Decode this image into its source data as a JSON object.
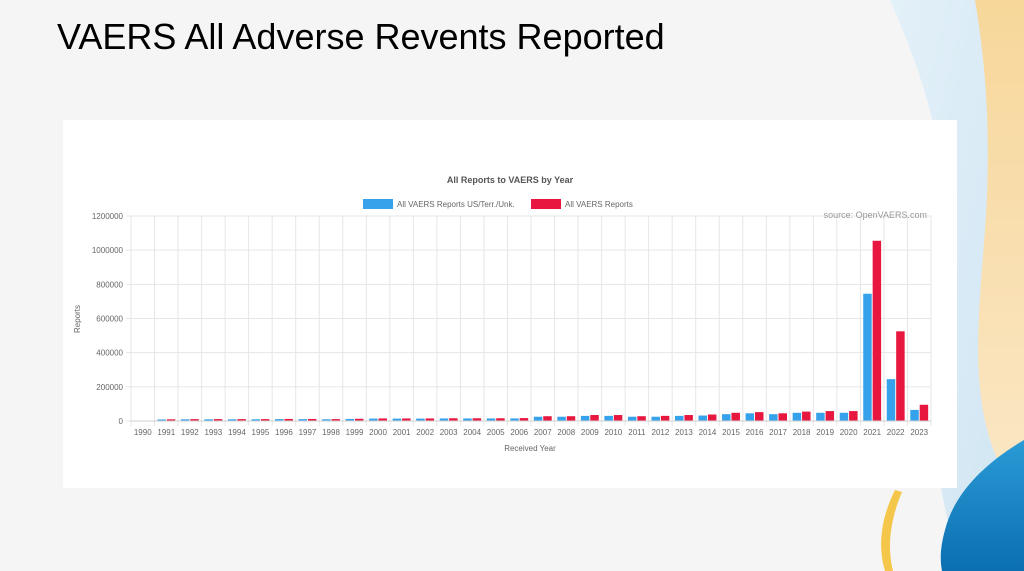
{
  "slide": {
    "title": "VAERS All Adverse Revents Reported"
  },
  "colors": {
    "us": "#36a2eb",
    "all": "#e8173f"
  },
  "chart_data": {
    "type": "bar",
    "title": "All Reports to VAERS by Year",
    "xlabel": "Received Year",
    "ylabel": "Reports",
    "source": "source: OpenVAERS.com",
    "ylim": [
      0,
      1200000
    ],
    "yticks": [
      0,
      200000,
      400000,
      600000,
      800000,
      1000000,
      1200000
    ],
    "grid": true,
    "legend_position": "top",
    "categories": [
      "1990",
      "1991",
      "1992",
      "1993",
      "1994",
      "1995",
      "1996",
      "1997",
      "1998",
      "1999",
      "2000",
      "2001",
      "2002",
      "2003",
      "2004",
      "2005",
      "2006",
      "2007",
      "2008",
      "2009",
      "2010",
      "2011",
      "2012",
      "2013",
      "2014",
      "2015",
      "2016",
      "2017",
      "2018",
      "2019",
      "2020",
      "2021",
      "2022",
      "2023"
    ],
    "series": [
      {
        "name": "All VAERS Reports US/Terr./Unk.",
        "color": "#36a2eb",
        "values": [
          2000,
          9000,
          10000,
          10000,
          10000,
          10000,
          11000,
          11000,
          10000,
          12000,
          14000,
          14000,
          14000,
          15000,
          15000,
          15000,
          15000,
          25000,
          25000,
          30000,
          30000,
          25000,
          25000,
          30000,
          32000,
          40000,
          45000,
          40000,
          48000,
          48000,
          48000,
          745000,
          245000,
          65000
        ]
      },
      {
        "name": "All VAERS Reports",
        "color": "#e8173f",
        "values": [
          2500,
          10000,
          11000,
          11000,
          11000,
          11000,
          12000,
          12000,
          11000,
          13000,
          15000,
          15000,
          15000,
          16000,
          16000,
          16000,
          17000,
          28000,
          28000,
          35000,
          35000,
          28000,
          30000,
          35000,
          38000,
          48000,
          52000,
          45000,
          55000,
          58000,
          58000,
          1055000,
          525000,
          95000
        ]
      }
    ]
  }
}
